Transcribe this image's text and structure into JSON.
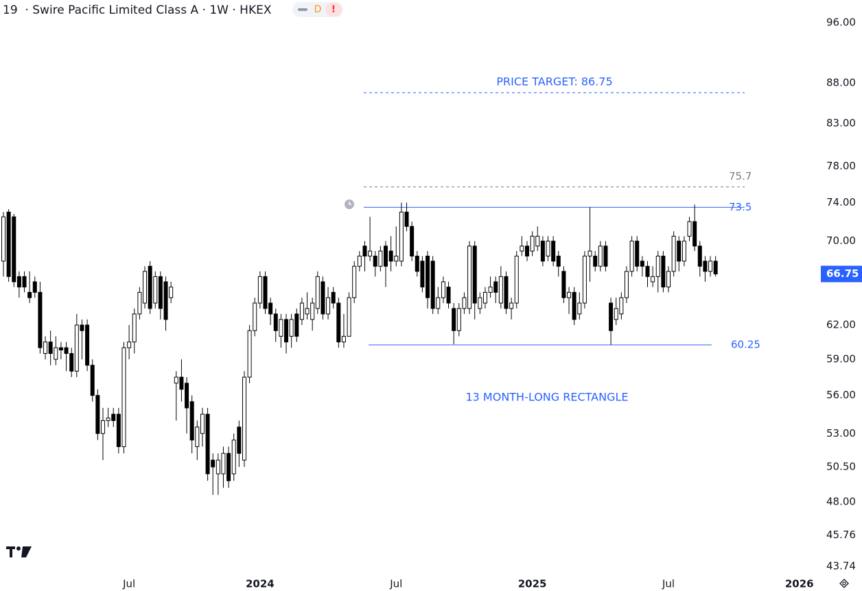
{
  "chart_data": {
    "type": "candlestick",
    "title": "19  · Swire Pacific Limited Class A · 1W · HKEX",
    "badges": [
      "D",
      "!"
    ],
    "log_scale": true,
    "up_color": "#ffffff",
    "down_color": "#000000",
    "ylim": [
      43.74,
      96
    ],
    "yticks": [
      {
        "value": 96,
        "label": "96.00"
      },
      {
        "value": 88,
        "label": "88.00"
      },
      {
        "value": 83,
        "label": "83.00"
      },
      {
        "value": 78,
        "label": "78.00"
      },
      {
        "value": 74,
        "label": "74.00"
      },
      {
        "value": 70,
        "label": "70.00"
      },
      {
        "value": 62,
        "label": "62.00"
      },
      {
        "value": 59,
        "label": "59.00"
      },
      {
        "value": 56,
        "label": "56.00"
      },
      {
        "value": 53,
        "label": "53.00"
      },
      {
        "value": 50.5,
        "label": "50.50"
      },
      {
        "value": 48,
        "label": "48.00"
      },
      45.76,
      43.74
    ],
    "last_price": 66.75,
    "last_price_color": "#2962ff",
    "levels": [
      {
        "value": 86.75,
        "color": "#2962ff",
        "dashed": true,
        "show_label": false
      },
      {
        "value": 75.7,
        "color": "#787b86",
        "dashed": true,
        "show_label": true
      },
      {
        "value": 73.5,
        "color": "#2962ff",
        "dashed": false,
        "show_label": true
      },
      {
        "value": 60.25,
        "color": "#2962ff",
        "dashed": false,
        "show_label": true
      }
    ],
    "annotations": [
      {
        "text": "PRICE TARGET: 86.75",
        "color": "#2962ff"
      },
      {
        "text": "13 MONTH-LONG RECTANGLE",
        "color": "#2962ff"
      }
    ],
    "categories": [
      null,
      null,
      null,
      null,
      null,
      null,
      null,
      null,
      null,
      null,
      null,
      null,
      null,
      null,
      null,
      null,
      null,
      null,
      null,
      null,
      null,
      null,
      null,
      null,
      "Jul",
      null,
      null,
      null,
      null,
      null,
      null,
      null,
      null,
      null,
      null,
      null,
      null,
      null,
      null,
      null,
      null,
      null,
      null,
      null,
      null,
      null,
      null,
      null,
      null,
      "2024",
      null,
      null,
      null,
      null,
      null,
      null,
      null,
      null,
      null,
      null,
      null,
      null,
      null,
      null,
      null,
      null,
      null,
      null,
      null,
      null,
      null,
      null,
      null,
      null,
      null,
      "Jul",
      null,
      null,
      null,
      null,
      null,
      null,
      null,
      null,
      null,
      null,
      null,
      null,
      null,
      null,
      null,
      null,
      null,
      null,
      null,
      null,
      null,
      null,
      null,
      null,
      null,
      "2025",
      null,
      null,
      null,
      null,
      null,
      null,
      null,
      null,
      null,
      null,
      null,
      null,
      null,
      null,
      null,
      null,
      null,
      null,
      null,
      null,
      null,
      null,
      null,
      null,
      null,
      "Jul",
      null,
      null,
      null,
      null,
      null,
      null,
      null,
      null,
      null,
      null,
      null,
      null,
      null,
      null,
      null,
      null,
      null,
      null,
      null,
      null,
      null,
      null,
      null,
      null,
      "2026"
    ],
    "open": [
      68,
      73,
      72.5,
      66.5,
      66.5,
      65,
      66,
      65,
      59.5,
      60.5,
      59,
      60,
      60,
      59.5,
      58,
      62,
      62,
      58.5,
      56,
      53,
      54,
      54.5,
      54.5,
      52,
      60,
      60.5,
      63,
      64,
      67.5,
      64,
      66.5,
      66,
      64.5,
      57,
      57.5,
      57,
      55.5,
      52,
      53,
      54.5,
      51,
      50,
      50,
      51.5,
      50,
      53.5,
      51,
      57.5,
      61.5,
      64,
      66.5,
      64,
      63,
      61,
      62.5,
      61,
      63,
      62.5,
      63,
      62.5,
      63.5,
      66,
      63,
      65,
      64,
      60.5,
      61,
      64.5,
      67.5,
      69.5,
      68.5,
      68.5,
      67.5,
      69.5,
      69,
      68,
      68,
      73,
      71.5,
      68.5,
      68,
      68.5,
      68,
      63.5,
      64.5,
      65.5,
      63.5,
      61.5,
      63.5,
      63.5,
      69.5,
      63.5,
      64,
      65,
      66,
      64,
      66.5,
      63.5,
      64,
      69,
      69.5,
      69,
      69.5,
      70,
      68.5,
      70,
      68.5,
      67,
      64.5,
      65,
      63,
      64,
      68.5,
      68.5,
      67.5,
      69.5,
      64,
      62.5,
      63,
      64.5,
      67,
      70,
      68,
      67.5,
      66,
      66.5,
      68.5,
      65.5,
      67,
      70,
      68,
      70.5,
      72,
      69.5,
      68,
      67,
      68,
      null,
      null,
      null,
      null,
      null,
      null,
      null,
      null,
      null,
      null,
      null,
      null,
      null,
      null,
      null,
      null
    ],
    "high": [
      73,
      73.3,
      72.8,
      67,
      67,
      67,
      66.5,
      66,
      61,
      61.5,
      61,
      60.5,
      60.5,
      60,
      63,
      62.5,
      62.5,
      59,
      56.5,
      55,
      55,
      55,
      55,
      60.5,
      62,
      63.5,
      65.5,
      67.5,
      68,
      67,
      67,
      66.5,
      66,
      58,
      59,
      57.5,
      56,
      54,
      55,
      55,
      51.5,
      51.5,
      52,
      52,
      53,
      54,
      58,
      62,
      64.5,
      67,
      67,
      64.5,
      63.5,
      63,
      63,
      63,
      63.5,
      64.5,
      65,
      64.5,
      67,
      66.5,
      65.5,
      65.5,
      64.5,
      63,
      65,
      68,
      69,
      70,
      72.5,
      69,
      69.5,
      70,
      70.5,
      71.5,
      74,
      74,
      72,
      69,
      68.5,
      69,
      68.5,
      65.5,
      66.5,
      66,
      64,
      64,
      65,
      70,
      70,
      65,
      65.5,
      66.5,
      66.5,
      67.5,
      67,
      64.5,
      69,
      70.5,
      70,
      71,
      71.5,
      70.5,
      70.5,
      70.5,
      69,
      67.5,
      65.5,
      65.5,
      65,
      69,
      73.5,
      69,
      70,
      70,
      64.5,
      64.5,
      65,
      67.5,
      70.5,
      70.5,
      68.5,
      68,
      67.5,
      69,
      69,
      67.5,
      71,
      70.5,
      70.5,
      72.5,
      73.8,
      70,
      68.5,
      68.5,
      68.5,
      null,
      null,
      null,
      null,
      null,
      null,
      null,
      null,
      null,
      null,
      null,
      null,
      null,
      null,
      null,
      null
    ],
    "low": [
      66.5,
      66,
      65.5,
      64.5,
      65,
      64,
      64.5,
      59.5,
      59,
      58.5,
      58.5,
      59,
      58,
      57.5,
      57.5,
      59,
      58,
      55.5,
      52.5,
      51,
      53.5,
      53.5,
      51.5,
      51.5,
      59,
      59.5,
      62.5,
      63.5,
      63,
      63.5,
      62.5,
      61.5,
      64,
      54,
      55.5,
      53,
      51.5,
      51,
      52,
      49.5,
      48.5,
      48.5,
      49,
      49,
      49.5,
      50.5,
      50.5,
      57,
      61,
      63.5,
      63,
      62,
      60.5,
      60,
      59.5,
      60,
      60.5,
      62,
      62.5,
      61.5,
      63,
      62.5,
      62.5,
      63.5,
      60,
      60,
      61,
      64,
      67,
      67,
      68,
      66.5,
      67,
      65.5,
      67,
      67.5,
      67.5,
      71,
      68,
      66.5,
      65,
      63.5,
      63,
      63,
      64,
      63.5,
      60.3,
      61,
      63,
      63,
      62.5,
      63,
      63.5,
      64.5,
      64,
      63.5,
      63,
      62.5,
      63.5,
      68.5,
      68,
      68.5,
      69,
      67.5,
      68,
      67.5,
      66.5,
      64,
      63,
      62,
      62.5,
      63.5,
      66,
      67,
      67,
      67,
      60.25,
      62,
      62.5,
      64,
      66.5,
      67,
      66.5,
      65.5,
      65.5,
      65,
      65,
      65,
      66.5,
      67,
      67.5,
      70,
      69,
      66.5,
      66,
      66.5,
      66.5,
      null,
      null,
      null,
      null,
      null,
      null,
      null,
      null,
      null,
      null,
      null,
      null,
      null,
      null,
      null,
      null
    ],
    "close": [
      72.5,
      66.5,
      66,
      65.5,
      65.5,
      64.5,
      65,
      60,
      60.5,
      59.5,
      60,
      59.8,
      59.5,
      58,
      62,
      61.5,
      58.5,
      56,
      53,
      54,
      54.2,
      54,
      52,
      60,
      60.5,
      63,
      65,
      67,
      63.5,
      66.5,
      63.5,
      62.5,
      65.5,
      57.5,
      56.5,
      55,
      52.5,
      53.5,
      54.5,
      50,
      50.5,
      51,
      51.5,
      49.5,
      52.5,
      51.5,
      57.5,
      61.5,
      64,
      66.5,
      63.5,
      63,
      61.5,
      62.5,
      60.5,
      62.5,
      61,
      64,
      63.5,
      64,
      66.5,
      63,
      64.5,
      64,
      60.5,
      61,
      64.5,
      67.5,
      68.5,
      68.5,
      69,
      67.5,
      69,
      67.5,
      68,
      68.5,
      73,
      71.5,
      68.5,
      67,
      65.5,
      64.5,
      63.5,
      64.5,
      66,
      64,
      61.5,
      63.5,
      64.5,
      69.5,
      64,
      64.5,
      65,
      65.5,
      65,
      66.5,
      63.5,
      64,
      68.5,
      69.5,
      68.5,
      70.5,
      70.5,
      68,
      70,
      68,
      67.5,
      64.5,
      65,
      62.5,
      64,
      68.5,
      69,
      67.5,
      69.5,
      67.5,
      61.5,
      63.5,
      64.5,
      67,
      70,
      67.5,
      67.5,
      66.5,
      66.5,
      68.5,
      65.5,
      67,
      70.5,
      68,
      70,
      72,
      69.5,
      67.5,
      67,
      68,
      66.75,
      null,
      null,
      null,
      null,
      null,
      null,
      null,
      null,
      null,
      null,
      null,
      null,
      null,
      null,
      null,
      null
    ]
  }
}
